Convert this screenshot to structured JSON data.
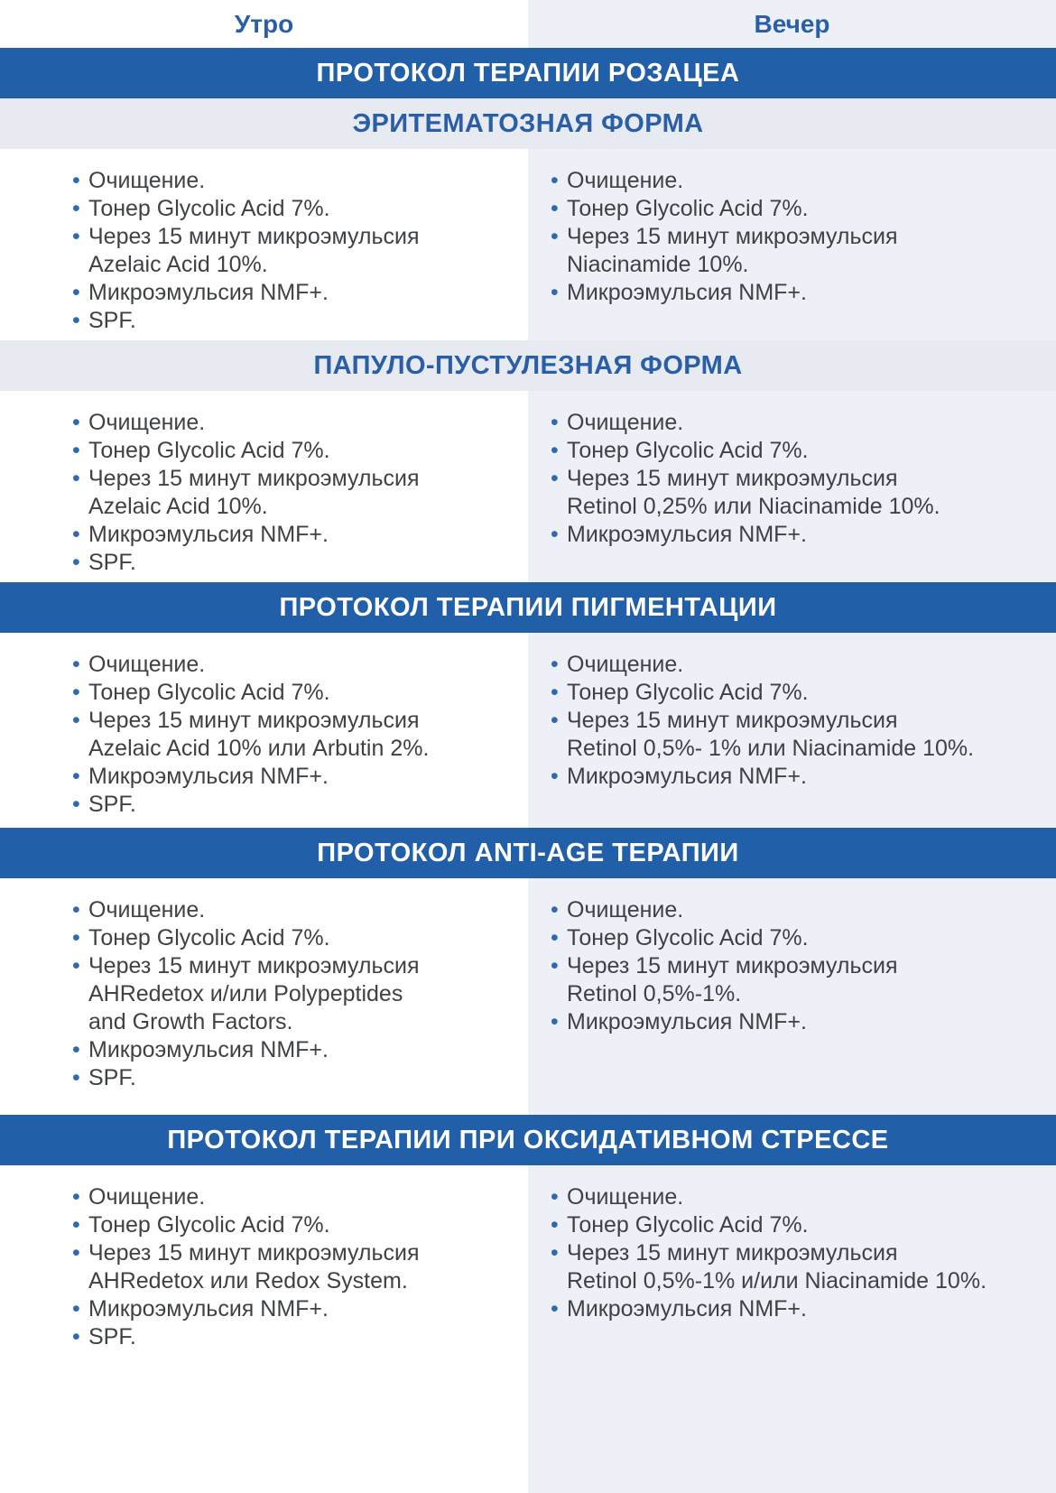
{
  "columns": {
    "morning_label": "Утро",
    "evening_label": "Вечер"
  },
  "rosacea": {
    "title": "ПРОТОКОЛ ТЕРАПИИ РОЗАЦЕА",
    "erythematous": {
      "title": "ЭРИТЕМАТОЗНАЯ ФОРМА",
      "morning": [
        "Очищение.",
        "Тонер Glycolic Acid 7%.",
        "Через 15 минут микроэмульсия\nAzelaic Acid 10%.",
        "Микроэмульсия NMF+.",
        "SPF."
      ],
      "evening": [
        "Очищение.",
        "Тонер Glycolic Acid 7%.",
        "Через 15 минут микроэмульсия\nNiacinamide 10%.",
        "Микроэмульсия NMF+."
      ]
    },
    "papulopustular": {
      "title": "ПАПУЛО-ПУСТУЛЕЗНАЯ ФОРМА",
      "morning": [
        "Очищение.",
        "Тонер Glycolic Acid 7%.",
        "Через 15 минут микроэмульсия\nAzelaic Acid 10%.",
        "Микроэмульсия NMF+.",
        "SPF."
      ],
      "evening": [
        "Очищение.",
        "Тонер Glycolic Acid 7%.",
        "Через 15 минут микроэмульсия\nRetinol 0,25% или Niacinamide 10%.",
        "Микроэмульсия NMF+."
      ]
    }
  },
  "pigmentation": {
    "title": "ПРОТОКОЛ ТЕРАПИИ ПИГМЕНТАЦИИ",
    "morning": [
      "Очищение.",
      "Тонер Glycolic Acid 7%.",
      "Через 15 минут микроэмульсия\nAzelaic Acid 10% или Arbutin 2%.",
      "Микроэмульсия NMF+.",
      "SPF."
    ],
    "evening": [
      "Очищение.",
      "Тонер Glycolic Acid 7%.",
      "Через 15 минут микроэмульсия\nRetinol 0,5%- 1% или Niacinamide 10%.",
      "Микроэмульсия NMF+."
    ]
  },
  "anti_age": {
    "title": "ПРОТОКОЛ ANTI-AGE ТЕРАПИИ",
    "morning": [
      "Очищение.",
      "Тонер Glycolic Acid 7%.",
      "Через 15 минут микроэмульсия\nAHRedetox и/или Polypeptides\nand Growth Factors.",
      "Микроэмульсия NMF+.",
      "SPF."
    ],
    "evening": [
      "Очищение.",
      "Тонер Glycolic Acid 7%.",
      "Через 15 минут микроэмульсия\nRetinol 0,5%-1%.",
      "Микроэмульсия NMF+."
    ]
  },
  "oxidative_stress": {
    "title": "ПРОТОКОЛ ТЕРАПИИ ПРИ ОКСИДАТИВНОМ СТРЕССЕ",
    "morning": [
      "Очищение.",
      "Тонер Glycolic Acid 7%.",
      "Через 15 минут микроэмульсия\nAHRedetox или Redox System.",
      "Микроэмульсия NMF+.",
      "SPF."
    ],
    "evening": [
      "Очищение.",
      "Тонер Glycolic Acid 7%.",
      "Через 15 минут микроэмульсия\nRetinol 0,5%-1% и/или Niacinamide 10%.",
      "Микроэмульсия NMF+."
    ]
  },
  "colors": {
    "bar-bg": "#2160a8",
    "bar-text": "#ffffff",
    "band-bg": "#e7eaf1",
    "accent": "#2a5fa7",
    "bullet": "#2f6ab1",
    "body-text": "#3f4245",
    "evening-bg": "#edf0f7",
    "morning-bg": "#ffffff"
  }
}
